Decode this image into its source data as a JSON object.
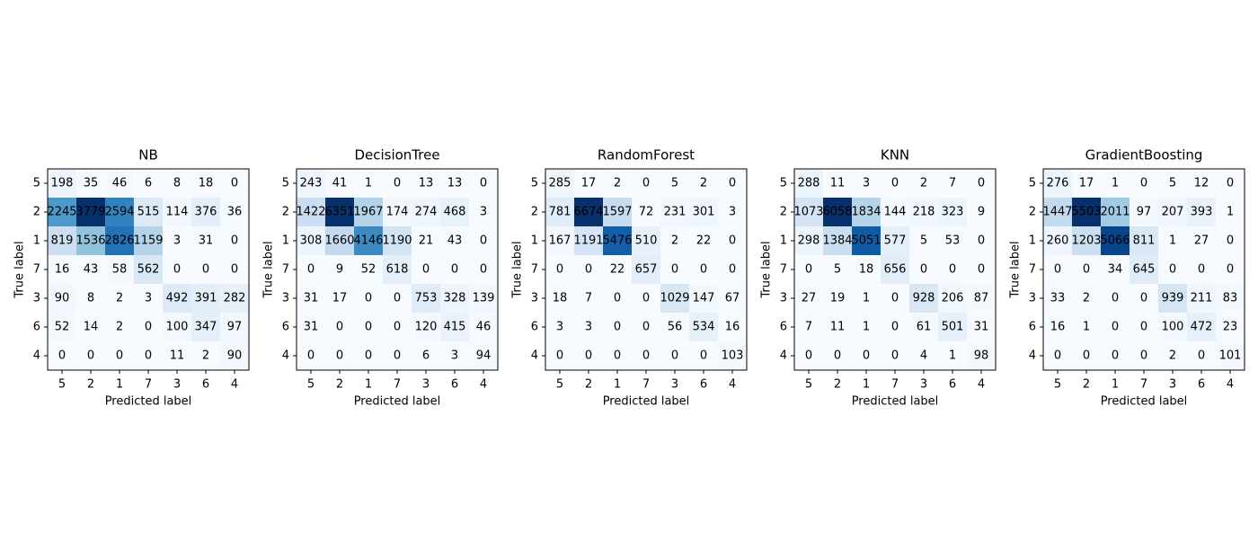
{
  "chart_data": [
    {
      "type": "heatmap",
      "title": "NB",
      "x_label": "Predicted label",
      "y_label": "True label",
      "colormap": "Blues",
      "categories": [
        "5",
        "2",
        "1",
        "7",
        "3",
        "6",
        "4"
      ],
      "values": [
        [
          198,
          35,
          46,
          6,
          8,
          18,
          0
        ],
        [
          2245,
          3779,
          2594,
          515,
          114,
          376,
          36
        ],
        [
          819,
          1536,
          2826,
          1159,
          3,
          31,
          0
        ],
        [
          16,
          43,
          58,
          562,
          0,
          0,
          0
        ],
        [
          90,
          8,
          2,
          3,
          492,
          391,
          282
        ],
        [
          52,
          14,
          2,
          0,
          100,
          347,
          97
        ],
        [
          0,
          0,
          0,
          0,
          11,
          2,
          90
        ]
      ]
    },
    {
      "type": "heatmap",
      "title": "DecisionTree",
      "x_label": "Predicted label",
      "y_label": "True label",
      "colormap": "Blues",
      "categories": [
        "5",
        "2",
        "1",
        "7",
        "3",
        "6",
        "4"
      ],
      "values": [
        [
          243,
          41,
          1,
          0,
          13,
          13,
          0
        ],
        [
          1422,
          6351,
          1967,
          174,
          274,
          468,
          3
        ],
        [
          308,
          1660,
          4146,
          1190,
          21,
          43,
          0
        ],
        [
          0,
          9,
          52,
          618,
          0,
          0,
          0
        ],
        [
          31,
          17,
          0,
          0,
          753,
          328,
          139
        ],
        [
          31,
          0,
          0,
          0,
          120,
          415,
          46
        ],
        [
          0,
          0,
          0,
          0,
          6,
          3,
          94
        ]
      ]
    },
    {
      "type": "heatmap",
      "title": "RandomForest",
      "x_label": "Predicted label",
      "y_label": "True label",
      "colormap": "Blues",
      "categories": [
        "5",
        "2",
        "1",
        "7",
        "3",
        "6",
        "4"
      ],
      "values": [
        [
          285,
          17,
          2,
          0,
          5,
          2,
          0
        ],
        [
          781,
          6674,
          1597,
          72,
          231,
          301,
          3
        ],
        [
          167,
          1191,
          5476,
          510,
          2,
          22,
          0
        ],
        [
          0,
          0,
          22,
          657,
          0,
          0,
          0
        ],
        [
          18,
          7,
          0,
          0,
          1029,
          147,
          67
        ],
        [
          3,
          3,
          0,
          0,
          56,
          534,
          16
        ],
        [
          0,
          0,
          0,
          0,
          0,
          0,
          103
        ]
      ]
    },
    {
      "type": "heatmap",
      "title": "KNN",
      "x_label": "Predicted label",
      "y_label": "True label",
      "colormap": "Blues",
      "categories": [
        "5",
        "2",
        "1",
        "7",
        "3",
        "6",
        "4"
      ],
      "values": [
        [
          288,
          11,
          3,
          0,
          2,
          7,
          0
        ],
        [
          1073,
          6058,
          1834,
          144,
          218,
          323,
          9
        ],
        [
          298,
          1384,
          5051,
          577,
          5,
          53,
          0
        ],
        [
          0,
          5,
          18,
          656,
          0,
          0,
          0
        ],
        [
          27,
          19,
          1,
          0,
          928,
          206,
          87
        ],
        [
          7,
          11,
          1,
          0,
          61,
          501,
          31
        ],
        [
          0,
          0,
          0,
          0,
          4,
          1,
          98
        ]
      ]
    },
    {
      "type": "heatmap",
      "title": "GradientBoosting",
      "x_label": "Predicted label",
      "y_label": "True label",
      "colormap": "Blues",
      "categories": [
        "5",
        "2",
        "1",
        "7",
        "3",
        "6",
        "4"
      ],
      "values": [
        [
          276,
          17,
          1,
          0,
          5,
          12,
          0
        ],
        [
          1447,
          5503,
          2011,
          97,
          207,
          393,
          1
        ],
        [
          260,
          1203,
          5066,
          811,
          1,
          27,
          0
        ],
        [
          0,
          0,
          34,
          645,
          0,
          0,
          0
        ],
        [
          33,
          2,
          0,
          0,
          939,
          211,
          83
        ],
        [
          16,
          1,
          0,
          0,
          100,
          472,
          23
        ],
        [
          0,
          0,
          0,
          0,
          2,
          0,
          101
        ]
      ]
    }
  ]
}
